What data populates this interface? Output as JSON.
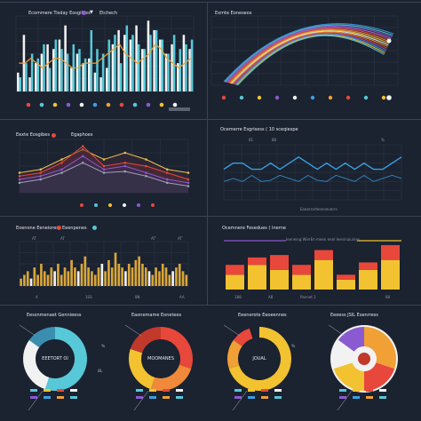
{
  "colors": {
    "bg": "#1b2230",
    "grid": "#3a4354",
    "teal": "#56c8d8",
    "white": "#f2f2f2",
    "orange": "#f0a035",
    "red": "#e8473b",
    "blue": "#3aa0e0",
    "yellow": "#f2c230",
    "purple": "#8a5ad0"
  },
  "panel1": {
    "title": "Ecommere Tisday Eosgibies",
    "suffix": "Etchech",
    "chart_data": {
      "type": "bar",
      "series": [
        {
          "name": "",
          "values": [
            4,
            12,
            3,
            6,
            8,
            10,
            9,
            11,
            14,
            5,
            8,
            6,
            7,
            4,
            3,
            5,
            10,
            13,
            12,
            11,
            14,
            9,
            15,
            13,
            11,
            8,
            10,
            6,
            12,
            9
          ]
        },
        {
          "name": "",
          "values": [
            3,
            6,
            8,
            7,
            10,
            5,
            11,
            9,
            8,
            10,
            9,
            7,
            13,
            9,
            8,
            11,
            12,
            6,
            14,
            12,
            10,
            9,
            12,
            13,
            11,
            8,
            12,
            9,
            10,
            11
          ]
        }
      ],
      "line": [
        6,
        6,
        7,
        6,
        5,
        6,
        7,
        7,
        6,
        5,
        5,
        6,
        6,
        6,
        7,
        8,
        9,
        10,
        8,
        7,
        6,
        7,
        8,
        10,
        9,
        7,
        6,
        5,
        6,
        7
      ],
      "ylim": [
        0,
        16
      ]
    }
  },
  "panel2": {
    "title": "Exmte Eoneseos",
    "chart_data": {
      "type": "line",
      "series_count": 14,
      "ylim": [
        0,
        10
      ]
    }
  },
  "panel3": {
    "title": "Eexte Eosgibes",
    "suffix": "Egaphoes",
    "chart_data": {
      "type": "line",
      "series": [
        {
          "name": "",
          "color": "#f0c050",
          "values": [
            3,
            3.5,
            5,
            6.5,
            5,
            6,
            5,
            3.5,
            3
          ]
        },
        {
          "name": "",
          "color": "#e8473b",
          "values": [
            2.5,
            3,
            4.5,
            7,
            4,
            4.5,
            4,
            3,
            2
          ]
        },
        {
          "name": "",
          "color": "#8a5ad0",
          "values": [
            2,
            2.5,
            3.5,
            5.5,
            3.5,
            4,
            3,
            2,
            1.5
          ]
        },
        {
          "name": "",
          "color": "#9aa3b5",
          "values": [
            1.5,
            2,
            3,
            4.5,
            3,
            3.2,
            2.5,
            1.5,
            1
          ]
        }
      ],
      "ylim": [
        0,
        8
      ]
    }
  },
  "panel4": {
    "title": "Ocemerre Esgrisess ( 10 sceqiespe",
    "ticks": [
      "81",
      "88",
      "%"
    ],
    "footer": "Eaezsrarteonneuerrs",
    "chart_data": {
      "type": "line",
      "series": [
        {
          "name": "",
          "color": "#3aa0e0",
          "values": [
            5,
            6,
            6,
            5,
            5,
            6,
            5,
            6,
            7,
            6,
            5,
            6,
            5,
            6,
            5,
            6,
            5,
            5,
            6,
            7
          ]
        },
        {
          "name": "",
          "color": "#3aa0e0",
          "values": [
            3,
            3.5,
            3,
            4,
            3,
            3.2,
            4,
            3.5,
            3,
            4,
            3.2,
            3,
            4,
            3.5,
            3,
            4,
            3,
            3.5,
            4,
            3.5
          ]
        }
      ],
      "ylim": [
        0,
        9
      ]
    }
  },
  "panel5": {
    "title": "Eoenone Eeneiores",
    "suffix": "Eeenpenes",
    "tick_labels": [
      "AT",
      "AT",
      "AT'",
      "AT'"
    ],
    "x_labels": [
      "A",
      "1SS",
      "8N",
      "AA"
    ],
    "chart_data": {
      "type": "bar",
      "values": [
        2,
        3,
        4,
        2,
        5,
        3,
        6,
        4,
        3,
        5,
        4,
        6,
        3,
        5,
        4,
        7,
        5,
        4,
        6,
        8,
        5,
        4,
        3,
        5,
        6,
        4,
        7,
        5,
        9,
        6,
        5,
        4,
        6,
        5,
        7,
        8,
        6,
        5,
        4,
        3,
        5,
        4,
        6,
        5,
        3,
        4,
        5,
        6,
        4,
        3
      ],
      "ylim": [
        0,
        12
      ]
    }
  },
  "panel6": {
    "title": "Ocemnere Fesedues ( Inerne",
    "legend": "Ieeneing WierEn meen enel Ieeninaiuines",
    "x_labels": [
      "188",
      "A8",
      "Pannet 1",
      "88"
    ],
    "chart_data": {
      "type": "bar",
      "categories": [
        "1",
        "2",
        "3",
        "4",
        "5",
        "6",
        "7",
        "8"
      ],
      "series": [
        {
          "name": "",
          "color": "#f2c230",
          "values": [
            3,
            5,
            4,
            3,
            6,
            2,
            4,
            6
          ]
        },
        {
          "name": "",
          "color": "#e8473b",
          "values": [
            2,
            1.5,
            3,
            2,
            2,
            1,
            1.5,
            3
          ]
        }
      ],
      "ylim": [
        0,
        9
      ]
    }
  },
  "donuts": [
    {
      "title": "Eessnmenaet Gennieess",
      "center": "EEETORT OI",
      "pct_right": "%",
      "pct_bottom": "8L",
      "chart_data": {
        "type": "pie",
        "values": [
          55,
          30,
          15
        ],
        "colors": [
          "#56c8d8",
          "#f2f2f2",
          "#3a8fb0"
        ]
      }
    },
    {
      "title": "Eaonemame Eonetees",
      "center": "MOOMANES",
      "chart_data": {
        "type": "pie",
        "values": [
          30,
          25,
          25,
          20
        ],
        "colors": [
          "#e8473b",
          "#f08a3a",
          "#f2c230",
          "#c0392b"
        ]
      }
    },
    {
      "title": "Eeenerote Eeoeennes",
      "center": "JOUAL",
      "pct_right": "%",
      "chart_data": {
        "type": "pie",
        "values": [
          70,
          15,
          10,
          5
        ],
        "colors": [
          "#f2c230",
          "#f0a035",
          "#e8473b",
          "#1b2230"
        ]
      }
    },
    {
      "title": "Eeeess JSIL Esenrress",
      "chart_data": {
        "type": "pie",
        "values": [
          30,
          20,
          20,
          15,
          15
        ],
        "colors": [
          "#f0a035",
          "#e8473b",
          "#f2c230",
          "#f2f2f2",
          "#8a5ad0"
        ]
      }
    }
  ]
}
